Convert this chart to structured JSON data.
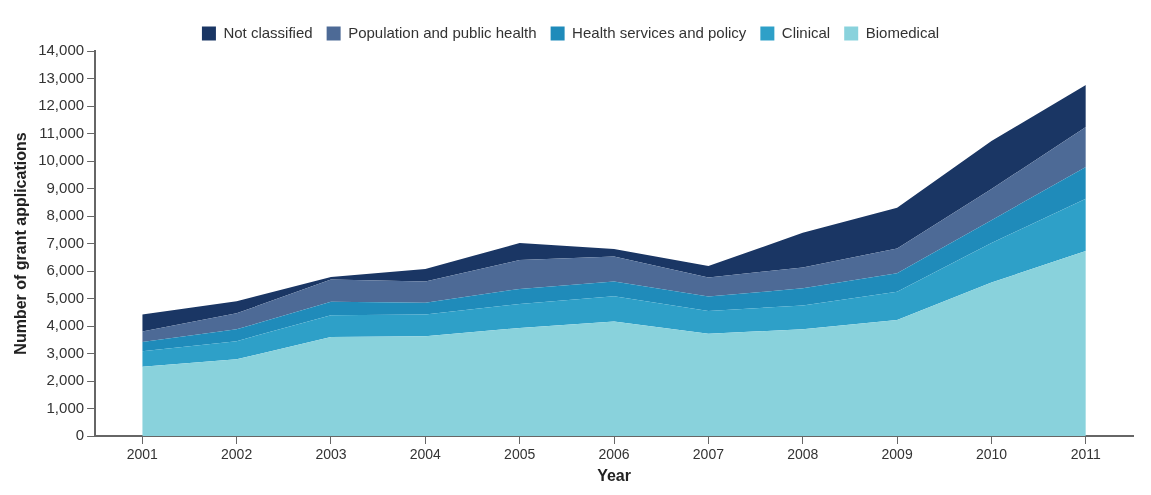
{
  "chart_data": {
    "type": "area",
    "stacked": true,
    "xlabel": "Year",
    "ylabel": "Number of grant applications",
    "categories": [
      "2001",
      "2002",
      "2003",
      "2004",
      "2005",
      "2006",
      "2007",
      "2008",
      "2009",
      "2010",
      "2011"
    ],
    "ylim": [
      0,
      14000
    ],
    "yticks": [
      0,
      {
        "value": 1000,
        "label": "1,000"
      },
      {
        "value": 2000,
        "label": "2,000"
      },
      {
        "value": 3000,
        "label": "3,000"
      },
      {
        "value": 4000,
        "label": "4,000"
      },
      {
        "value": 5000,
        "label": "5,000"
      },
      {
        "value": 6000,
        "label": "6,000"
      },
      {
        "value": 7000,
        "label": "7,000"
      },
      {
        "value": 8000,
        "label": "8,000"
      },
      {
        "value": 9000,
        "label": "9,000"
      },
      {
        "value": 10000,
        "label": "10,000"
      },
      {
        "value": 11000,
        "label": "11,000"
      },
      {
        "value": 12000,
        "label": "12,000"
      },
      {
        "value": 13000,
        "label": "13,000"
      },
      {
        "value": 14000,
        "label": "14,000"
      }
    ],
    "legend": "top",
    "series": [
      {
        "name": "Biomedical",
        "color": "#89d2dc",
        "values": [
          2520,
          2790,
          3600,
          3630,
          3930,
          4160,
          3720,
          3880,
          4220,
          5580,
          6730
        ]
      },
      {
        "name": "Clinical",
        "color": "#2ea0c8",
        "values": [
          560,
          660,
          790,
          790,
          870,
          920,
          830,
          870,
          1030,
          1440,
          1900
        ]
      },
      {
        "name": "Health services and policy",
        "color": "#1f8bba",
        "values": [
          340,
          430,
          490,
          430,
          550,
          540,
          520,
          620,
          670,
          830,
          1150
        ]
      },
      {
        "name": "Population and public health",
        "color": "#4d6a96",
        "values": [
          380,
          580,
          810,
          770,
          1050,
          910,
          690,
          760,
          900,
          1130,
          1460
        ]
      },
      {
        "name": "Not classified",
        "color": "#1a3664",
        "values": [
          620,
          440,
          90,
          450,
          620,
          270,
          420,
          1260,
          1480,
          1750,
          1520
        ]
      }
    ]
  }
}
